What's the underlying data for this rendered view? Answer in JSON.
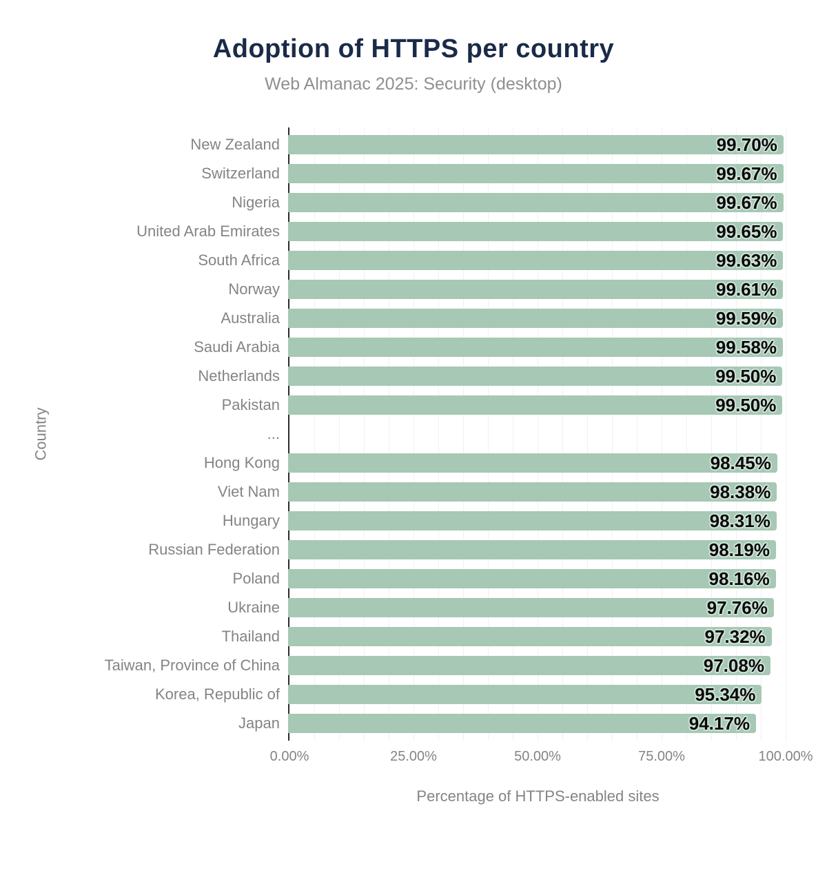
{
  "chart_data": {
    "type": "bar",
    "orientation": "horizontal",
    "title": "Adoption of HTTPS per country",
    "subtitle": "Web Almanac 2025: Security (desktop)",
    "xlabel": "Percentage of HTTPS-enabled sites",
    "ylabel": "Country",
    "xlim": [
      0,
      100
    ],
    "x_tick_labels": [
      "0.00%",
      "25.00%",
      "50.00%",
      "75.00%",
      "100.00%"
    ],
    "grid": "vertical minor gridlines every 5%",
    "legend": "none",
    "colors": {
      "bar": "#a6c8b4",
      "halo": "#cfe3d8",
      "title": "#1a2b49",
      "axis_text": "#848484",
      "value_text": "#0a0a0a",
      "gridline": "#f1f1f1",
      "axis_line": "#2f2f2f"
    },
    "rows": [
      {
        "category": "New Zealand",
        "value": 99.7,
        "value_label": "99.70%"
      },
      {
        "category": "Switzerland",
        "value": 99.67,
        "value_label": "99.67%"
      },
      {
        "category": "Nigeria",
        "value": 99.67,
        "value_label": "99.67%"
      },
      {
        "category": "United Arab Emirates",
        "value": 99.65,
        "value_label": "99.65%"
      },
      {
        "category": "South Africa",
        "value": 99.63,
        "value_label": "99.63%"
      },
      {
        "category": "Norway",
        "value": 99.61,
        "value_label": "99.61%"
      },
      {
        "category": "Australia",
        "value": 99.59,
        "value_label": "99.59%"
      },
      {
        "category": "Saudi Arabia",
        "value": 99.58,
        "value_label": "99.58%"
      },
      {
        "category": "Netherlands",
        "value": 99.5,
        "value_label": "99.50%"
      },
      {
        "category": "Pakistan",
        "value": 99.5,
        "value_label": "99.50%"
      },
      {
        "category": "...",
        "value": null,
        "value_label": ""
      },
      {
        "category": "Hong Kong",
        "value": 98.45,
        "value_label": "98.45%"
      },
      {
        "category": "Viet Nam",
        "value": 98.38,
        "value_label": "98.38%"
      },
      {
        "category": "Hungary",
        "value": 98.31,
        "value_label": "98.31%"
      },
      {
        "category": "Russian Federation",
        "value": 98.19,
        "value_label": "98.19%"
      },
      {
        "category": "Poland",
        "value": 98.16,
        "value_label": "98.16%"
      },
      {
        "category": "Ukraine",
        "value": 97.76,
        "value_label": "97.76%"
      },
      {
        "category": "Thailand",
        "value": 97.32,
        "value_label": "97.32%"
      },
      {
        "category": "Taiwan, Province of China",
        "value": 97.08,
        "value_label": "97.08%"
      },
      {
        "category": "Korea, Republic of",
        "value": 95.34,
        "value_label": "95.34%"
      },
      {
        "category": "Japan",
        "value": 94.17,
        "value_label": "94.17%"
      }
    ]
  }
}
